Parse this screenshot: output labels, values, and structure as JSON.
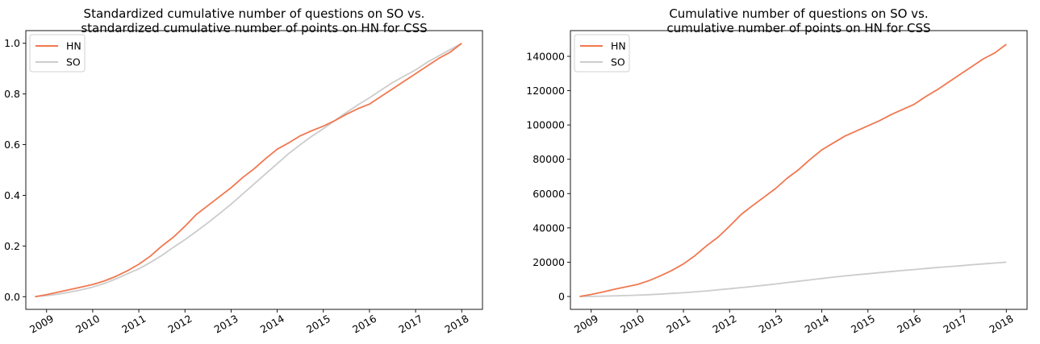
{
  "chart_data": [
    {
      "type": "line",
      "title_lines": [
        "Standardized cumulative number of questions on SO vs.",
        "standardized cumulative number of points on HN for CSS"
      ],
      "xlabel": "",
      "ylabel": "",
      "x_ticks": [
        "2009",
        "2010",
        "2011",
        "2012",
        "2013",
        "2014",
        "2015",
        "2016",
        "2017",
        "2018"
      ],
      "y_ticks": [
        "0.0",
        "0.2",
        "0.4",
        "0.6",
        "0.8",
        "1.0"
      ],
      "xlim": [
        2008.55,
        2018.45
      ],
      "ylim": [
        -0.05,
        1.05
      ],
      "grid": false,
      "legend_position": "top-left",
      "series": [
        {
          "name": "HN",
          "color": "#f07850",
          "x": [
            2008.75,
            2009.0,
            2009.25,
            2009.5,
            2009.75,
            2010.0,
            2010.25,
            2010.5,
            2010.75,
            2011.0,
            2011.25,
            2011.5,
            2011.75,
            2012.0,
            2012.25,
            2012.5,
            2012.75,
            2013.0,
            2013.25,
            2013.5,
            2013.75,
            2014.0,
            2014.25,
            2014.5,
            2014.75,
            2015.0,
            2015.25,
            2015.5,
            2015.75,
            2016.0,
            2016.25,
            2016.5,
            2016.75,
            2017.0,
            2017.25,
            2017.5,
            2017.75,
            2018.0
          ],
          "y": [
            0.0,
            0.008,
            0.018,
            0.028,
            0.038,
            0.048,
            0.062,
            0.08,
            0.102,
            0.128,
            0.16,
            0.2,
            0.235,
            0.278,
            0.325,
            0.36,
            0.395,
            0.43,
            0.47,
            0.505,
            0.545,
            0.582,
            0.607,
            0.635,
            0.655,
            0.673,
            0.695,
            0.72,
            0.742,
            0.76,
            0.79,
            0.82,
            0.85,
            0.88,
            0.91,
            0.94,
            0.965,
            1.0
          ]
        },
        {
          "name": "SO",
          "color": "#cccccc",
          "x": [
            2008.75,
            2009.0,
            2009.25,
            2009.5,
            2009.75,
            2010.0,
            2010.25,
            2010.5,
            2010.75,
            2011.0,
            2011.25,
            2011.5,
            2011.75,
            2012.0,
            2012.25,
            2012.5,
            2012.75,
            2013.0,
            2013.25,
            2013.5,
            2013.75,
            2014.0,
            2014.25,
            2014.5,
            2014.75,
            2015.0,
            2015.25,
            2015.5,
            2015.75,
            2016.0,
            2016.25,
            2016.5,
            2016.75,
            2017.0,
            2017.25,
            2017.5,
            2017.75,
            2018.0
          ],
          "y": [
            0.0,
            0.004,
            0.01,
            0.018,
            0.027,
            0.038,
            0.052,
            0.07,
            0.09,
            0.11,
            0.135,
            0.163,
            0.195,
            0.225,
            0.258,
            0.292,
            0.328,
            0.365,
            0.405,
            0.445,
            0.485,
            0.525,
            0.565,
            0.6,
            0.633,
            0.663,
            0.695,
            0.727,
            0.757,
            0.785,
            0.815,
            0.845,
            0.87,
            0.895,
            0.925,
            0.95,
            0.975,
            1.0
          ]
        }
      ]
    },
    {
      "type": "line",
      "title_lines": [
        "Cumulative number of questions on SO vs.",
        "cumulative number of points on HN for CSS"
      ],
      "xlabel": "",
      "ylabel": "",
      "x_ticks": [
        "2009",
        "2010",
        "2011",
        "2012",
        "2013",
        "2014",
        "2015",
        "2016",
        "2017",
        "2018"
      ],
      "y_ticks": [
        "0",
        "20000",
        "40000",
        "60000",
        "80000",
        "100000",
        "120000",
        "140000"
      ],
      "xlim": [
        2008.55,
        2018.45
      ],
      "ylim": [
        -7500,
        155000
      ],
      "grid": false,
      "legend_position": "top-left",
      "series": [
        {
          "name": "HN",
          "color": "#f07850",
          "x": [
            2008.75,
            2009.0,
            2009.25,
            2009.5,
            2009.75,
            2010.0,
            2010.25,
            2010.5,
            2010.75,
            2011.0,
            2011.25,
            2011.5,
            2011.75,
            2012.0,
            2012.25,
            2012.5,
            2012.75,
            2013.0,
            2013.25,
            2013.5,
            2013.75,
            2014.0,
            2014.25,
            2014.5,
            2014.75,
            2015.0,
            2015.25,
            2015.5,
            2015.75,
            2016.0,
            2016.25,
            2016.5,
            2016.75,
            2017.0,
            2017.25,
            2017.5,
            2017.75,
            2018.0
          ],
          "y": [
            0,
            1200,
            2600,
            4200,
            5600,
            7000,
            9200,
            12000,
            15200,
            19000,
            23800,
            29500,
            34600,
            41000,
            47800,
            53000,
            58000,
            63000,
            69000,
            74000,
            80000,
            85500,
            89500,
            93500,
            96500,
            99500,
            102500,
            106000,
            109000,
            112000,
            116500,
            120500,
            125000,
            129500,
            134000,
            138500,
            142000,
            147000
          ]
        },
        {
          "name": "SO",
          "color": "#cccccc",
          "x": [
            2008.75,
            2009.0,
            2009.25,
            2009.5,
            2009.75,
            2010.0,
            2010.25,
            2010.5,
            2010.75,
            2011.0,
            2011.25,
            2011.5,
            2011.75,
            2012.0,
            2012.25,
            2012.5,
            2012.75,
            2013.0,
            2013.25,
            2013.5,
            2013.75,
            2014.0,
            2014.25,
            2014.5,
            2014.75,
            2015.0,
            2015.25,
            2015.5,
            2015.75,
            2016.0,
            2016.25,
            2016.5,
            2016.75,
            2017.0,
            2017.25,
            2017.5,
            2017.75,
            2018.0
          ],
          "y": [
            0,
            80,
            200,
            360,
            540,
            760,
            1040,
            1400,
            1800,
            2200,
            2700,
            3260,
            3900,
            4500,
            5160,
            5840,
            6560,
            7300,
            8100,
            8900,
            9700,
            10500,
            11300,
            12000,
            12660,
            13260,
            13900,
            14540,
            15140,
            15700,
            16300,
            16900,
            17400,
            17900,
            18500,
            19000,
            19500,
            20000
          ]
        }
      ]
    }
  ]
}
